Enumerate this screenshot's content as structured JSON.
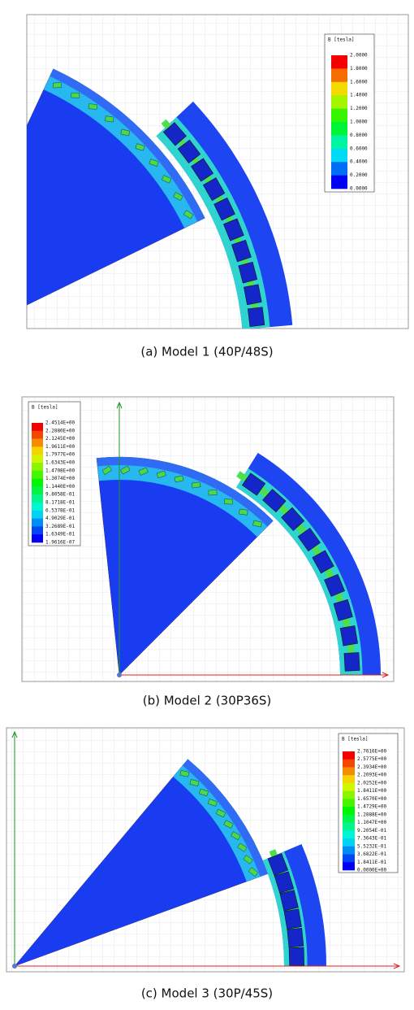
{
  "figure": {
    "panels": [
      {
        "caption": "(a) Model 1 (40P/48S)",
        "legend": {
          "title": "B [tesla]",
          "labels": [
            "2.0000",
            "1.8000",
            "1.6000",
            "1.4000",
            "1.2000",
            "1.0000",
            "0.8000",
            "0.6000",
            "0.4000",
            "0.2000",
            "0.0000"
          ]
        }
      },
      {
        "caption": "(b) Model 2 (30P36S)",
        "legend": {
          "title": "B [tesla]",
          "labels": [
            "2.4514E+00",
            "2.2880E+00",
            "2.1245E+00",
            "1.9611E+00",
            "1.7977E+00",
            "1.6343E+00",
            "1.4708E+00",
            "1.3074E+00",
            "1.1440E+00",
            "9.8058E-01",
            "8.1718E-01",
            "6.5378E-01",
            "4.9029E-01",
            "3.2689E-01",
            "1.6349E-01",
            "1.9616E-07"
          ]
        }
      },
      {
        "caption": "(c) Model 3 (30P/45S)",
        "legend": {
          "title": "B [tesla]",
          "labels": [
            "2.7616E+00",
            "2.5775E+00",
            "2.3934E+00",
            "2.2093E+00",
            "2.0252E+00",
            "1.8411E+00",
            "1.6570E+00",
            "1.4729E+00",
            "1.2888E+00",
            "1.1047E+00",
            "9.2054E-01",
            "7.3643E-01",
            "5.5232E-01",
            "3.6822E-01",
            "1.8411E-01",
            "0.0000E+00"
          ]
        }
      }
    ]
  }
}
